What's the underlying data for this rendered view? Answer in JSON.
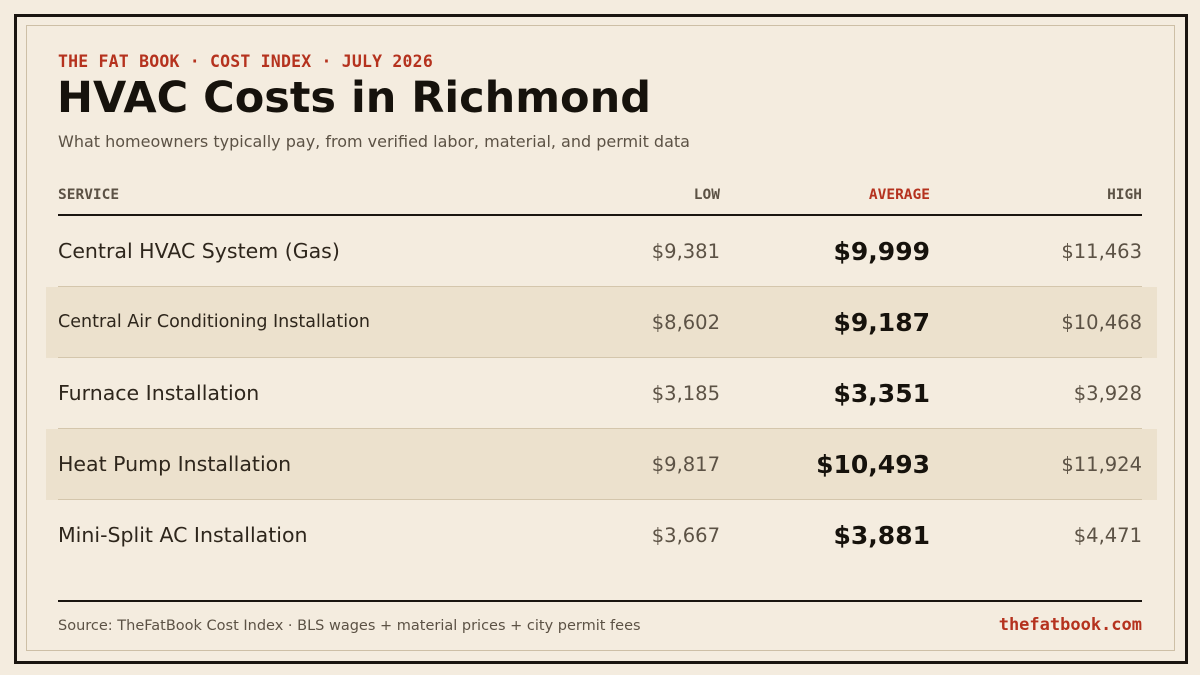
{
  "header": {
    "kicker": "THE FAT BOOK · COST INDEX · JULY 2026",
    "title": "HVAC Costs in Richmond",
    "subtitle": "What homeowners typically pay, from verified labor, material, and permit data"
  },
  "table": {
    "columns": {
      "service": "SERVICE",
      "low": "LOW",
      "average": "AVERAGE",
      "high": "HIGH"
    },
    "rows": [
      {
        "service": "Central HVAC System (Gas)",
        "low": "$9,381",
        "average": "$9,999",
        "high": "$11,463"
      },
      {
        "service": "Central Air Conditioning Installation",
        "low": "$8,602",
        "average": "$9,187",
        "high": "$10,468"
      },
      {
        "service": "Furnace Installation",
        "low": "$3,185",
        "average": "$3,351",
        "high": "$3,928"
      },
      {
        "service": "Heat Pump Installation",
        "low": "$9,817",
        "average": "$10,493",
        "high": "$11,924"
      },
      {
        "service": "Mini-Split AC Installation",
        "low": "$3,667",
        "average": "$3,881",
        "high": "$4,471"
      }
    ]
  },
  "footer": {
    "source": "Source: TheFatBook Cost Index · BLS wages + material prices + city permit fees",
    "site": "thefatbook.com"
  },
  "colors": {
    "background": "#f4ecdf",
    "band": "#ece1cd",
    "accent": "#b5321e",
    "ink": "#16120c"
  }
}
